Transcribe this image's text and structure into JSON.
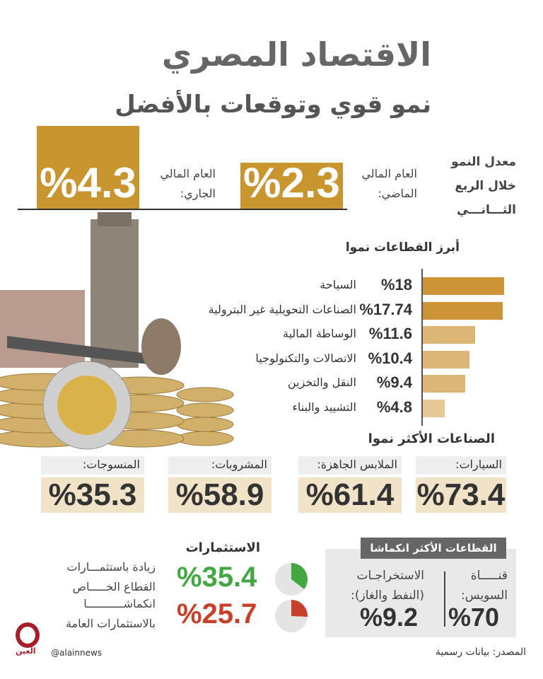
{
  "header": {
    "title": "الاقتصاد المصري",
    "subtitle": "نمو قوي وتوقعات بالأفضل"
  },
  "growth": {
    "label": [
      "معدل النمو",
      "خلال الربع",
      "الثـــانـــي"
    ],
    "previous": {
      "label": [
        "العام المالي",
        "الماضي:"
      ],
      "value": "%2.3"
    },
    "current": {
      "label": [
        "العام المالي",
        "الجاري:"
      ],
      "value": "%4.3"
    }
  },
  "chart_data": {
    "type": "bar",
    "title": "أبرز القطاعات نموا",
    "categories": [
      "السياحة",
      "الصناعات التحويلية غير البترولية",
      "الوساطة المالية",
      "الاتصالات والتكنولوجيا",
      "النقل والتخزين",
      "التشييد والبناء"
    ],
    "values": [
      18,
      17.74,
      11.6,
      10.4,
      9.4,
      4.8
    ],
    "value_labels": [
      "%18",
      "%17.74",
      "%11.6",
      "%10.4",
      "%9.4",
      "%4.8"
    ],
    "colors": [
      "#cc9436",
      "#cc9436",
      "#dcb676",
      "#dcb676",
      "#dcb676",
      "#e6c995"
    ],
    "xlim": [
      0,
      18
    ]
  },
  "industries": {
    "title": "الصناعات الأكثر نموا",
    "items": [
      {
        "label": "السيارات:",
        "value": "%73.4"
      },
      {
        "label": "الملابس الجاهزة:",
        "value": "%61.4"
      },
      {
        "label": "المشروبات:",
        "value": "%58.9"
      },
      {
        "label": "المنسوجات:",
        "value": "%35.3"
      }
    ]
  },
  "contraction": {
    "title": "القطاعات الأكثر انكماشا",
    "items": [
      {
        "label": [
          "قنـــــاة",
          "السويس:"
        ],
        "value": "%70"
      },
      {
        "label": [
          "الاستخراجـات",
          "(النفط والغاز):"
        ],
        "value": "%9.2"
      }
    ]
  },
  "investments": {
    "title": "الاستثمارات",
    "items": [
      {
        "label": [
          "زيادة باستثمـــارات",
          "القطاع الخـــــاص"
        ],
        "value": "%35.4",
        "percent": 35.4,
        "color": "#43a843"
      },
      {
        "label": [
          "انكماشـــــــــــا",
          "بالاستثمارات العامة"
        ],
        "value": "%25.7",
        "percent": 25.7,
        "color": "#c8402a"
      }
    ]
  },
  "footer": {
    "source": "المصدر: بيانات رسمية",
    "handle": "@alainnews",
    "logo_text": "العين"
  }
}
